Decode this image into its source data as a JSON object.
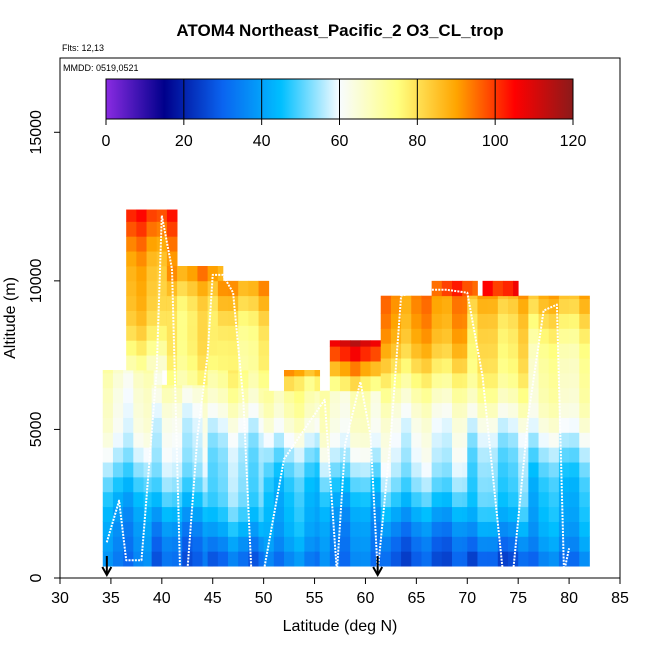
{
  "chart_data": {
    "type": "heatmap",
    "title": "ATOM4 Northeast_Pacific_2 O3_CL_trop",
    "flights_label": "Flts: 12,13",
    "date_label": "MMDD: 0519,0521",
    "xlabel": "Latitude (deg N)",
    "ylabel": "Altitude (m)",
    "xlim": [
      30,
      85
    ],
    "ylim": [
      0,
      17500
    ],
    "x_ticks": [
      30,
      35,
      40,
      45,
      50,
      55,
      60,
      65,
      70,
      75,
      80,
      85
    ],
    "y_ticks": [
      0,
      5000,
      10000,
      15000
    ],
    "colorbar": {
      "range": [
        0,
        120
      ],
      "ticks": [
        0,
        20,
        40,
        60,
        80,
        100,
        120
      ],
      "colors": [
        "#8a2be2",
        "#00008b",
        "#0a64f0",
        "#00bfff",
        "#f8fcff",
        "#ffff80",
        "#ffa500",
        "#ff0000",
        "#8b1a1a"
      ]
    },
    "grid": false,
    "markers": {
      "type": "arrow-down",
      "x": [
        34.6,
        61.2
      ]
    },
    "segments": [
      {
        "x0": 34.2,
        "x1": 40.0,
        "y0": 400,
        "y1": 7000,
        "v0": 30,
        "v1": 70,
        "mid": 45,
        "midAlt": 2500
      },
      {
        "x0": 36.5,
        "x1": 41.5,
        "y0": 7000,
        "y1": 12400,
        "v0": 68,
        "v1": 100,
        "mid": 85,
        "midAlt": 9500
      },
      {
        "x0": 39.0,
        "x1": 45.0,
        "y0": 400,
        "y1": 6500,
        "v0": 30,
        "v1": 70,
        "mid": 45,
        "midAlt": 2500
      },
      {
        "x0": 40.5,
        "x1": 46.0,
        "y0": 6500,
        "y1": 10500,
        "v0": 70,
        "v1": 95,
        "mid": 80,
        "midAlt": 9000
      },
      {
        "x0": 44.5,
        "x1": 50.5,
        "y0": 400,
        "y1": 7000,
        "v0": 32,
        "v1": 72,
        "mid": 48,
        "midAlt": 2500
      },
      {
        "x0": 45.5,
        "x1": 50.5,
        "y0": 7000,
        "y1": 10000,
        "v0": 72,
        "v1": 90,
        "mid": 80,
        "midAlt": 8500
      },
      {
        "x0": 50.0,
        "x1": 56.5,
        "y0": 400,
        "y1": 6300,
        "v0": 32,
        "v1": 70,
        "mid": 45,
        "midAlt": 2500
      },
      {
        "x0": 52.0,
        "x1": 55.5,
        "y0": 6300,
        "y1": 7000,
        "v0": 70,
        "v1": 95,
        "mid": 80,
        "midAlt": 6600
      },
      {
        "x0": 55.5,
        "x1": 61.5,
        "y0": 400,
        "y1": 6300,
        "v0": 30,
        "v1": 70,
        "mid": 45,
        "midAlt": 2500
      },
      {
        "x0": 56.5,
        "x1": 61.5,
        "y0": 6300,
        "y1": 8000,
        "v0": 75,
        "v1": 110,
        "mid": 90,
        "midAlt": 7000
      },
      {
        "x0": 61.5,
        "x1": 70.0,
        "y0": 400,
        "y1": 9500,
        "v0": 28,
        "v1": 95,
        "mid": 45,
        "midAlt": 2500
      },
      {
        "x0": 66.5,
        "x1": 71.0,
        "y0": 9500,
        "y1": 10000,
        "v0": 95,
        "v1": 110,
        "mid": 100,
        "midAlt": 9700
      },
      {
        "x0": 70.0,
        "x1": 76.0,
        "y0": 400,
        "y1": 9500,
        "v0": 28,
        "v1": 90,
        "mid": 45,
        "midAlt": 2500
      },
      {
        "x0": 71.5,
        "x1": 75.0,
        "y0": 9500,
        "y1": 10000,
        "v0": 95,
        "v1": 110,
        "mid": 100,
        "midAlt": 9700
      },
      {
        "x0": 76.0,
        "x1": 82.0,
        "y0": 400,
        "y1": 9500,
        "v0": 30,
        "v1": 85,
        "mid": 45,
        "midAlt": 2500
      }
    ],
    "flight_track": {
      "lat": [
        34.6,
        35.8,
        36.5,
        38.0,
        39.5,
        40.0,
        41.0,
        41.8,
        42.5,
        43.5,
        44.5,
        45.0,
        46.0,
        47.0,
        48.0,
        48.8,
        50.0,
        52.0,
        54.0,
        56.0,
        57.2,
        58.0,
        59.5,
        60.5,
        61.2,
        62.5,
        63.5,
        66.0,
        68.0,
        70.0,
        71.5,
        73.5,
        74.5,
        76.0,
        77.5,
        78.8,
        79.5,
        80.0
      ],
      "alt": [
        1200,
        2600,
        600,
        600,
        7000,
        12200,
        10400,
        200,
        200,
        4800,
        7500,
        10200,
        10200,
        9600,
        6000,
        200,
        200,
        4000,
        5000,
        6000,
        200,
        4500,
        6600,
        4800,
        200,
        4800,
        9500,
        9700,
        9700,
        9600,
        6800,
        200,
        200,
        5500,
        9000,
        9200,
        200,
        1000
      ]
    }
  }
}
